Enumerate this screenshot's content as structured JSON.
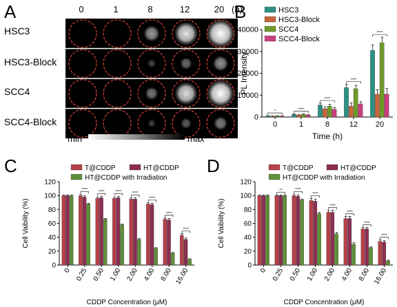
{
  "colors": {
    "HSC3": "#2e8f84",
    "HSC3-Block": "#c8653a",
    "SCC4": "#6f9a2a",
    "SCC4-Block": "#c93f7e",
    "T@CDDP": "#b64048",
    "HT@CDDP": "#8b2f52",
    "HT@CDDP with Irradiation": "#5f8f3a",
    "ring": "#d9443a"
  },
  "panelA": {
    "letter": "A",
    "time_labels": [
      "0",
      "1",
      "8",
      "12",
      "20"
    ],
    "time_unit": "(h)",
    "row_labels": [
      "HSC3",
      "HSC3-Block",
      "SCC4",
      "SCC4-Block"
    ],
    "intensity": [
      [
        0,
        0,
        0.45,
        0.75,
        0.95
      ],
      [
        0,
        0,
        0.12,
        0.28,
        0.42
      ],
      [
        0,
        0,
        0.32,
        0.72,
        0.9
      ],
      [
        0,
        0,
        0.1,
        0.22,
        0.35
      ]
    ],
    "min_label": "min",
    "max_label": "max"
  },
  "chart_data": [
    {
      "panel": "B",
      "type": "bar",
      "categories": [
        "0",
        "1",
        "8",
        "12",
        "20"
      ],
      "xlabel": "Time (h)",
      "ylabel": "PL Intensity",
      "ylim": [
        0,
        40000
      ],
      "yticks": [
        "0",
        "10000",
        "20000",
        "30000",
        "40000"
      ],
      "legend_position": "top-left",
      "series": [
        {
          "name": "HSC3",
          "values": [
            500,
            1200,
            5500,
            13500,
            30500
          ],
          "errors": [
            100,
            200,
            800,
            1500,
            2500
          ]
        },
        {
          "name": "HSC3-Block",
          "values": [
            400,
            900,
            3800,
            5000,
            10500
          ],
          "errors": [
            100,
            150,
            900,
            1500,
            2000
          ]
        },
        {
          "name": "SCC4",
          "values": [
            500,
            1200,
            5000,
            13000,
            34000
          ],
          "errors": [
            100,
            200,
            800,
            1500,
            2500
          ]
        },
        {
          "name": "SCC4-Block",
          "values": [
            400,
            900,
            3600,
            6000,
            10500
          ],
          "errors": [
            100,
            150,
            700,
            1000,
            2500
          ]
        }
      ],
      "significance": [
        "*",
        "****",
        "****",
        "****",
        "****"
      ]
    },
    {
      "panel": "C",
      "type": "bar",
      "categories": [
        "0",
        "0.25",
        "0.50",
        "1.00",
        "2.00",
        "4.00",
        "8.00",
        "16.00"
      ],
      "xlabel": "CDDP Concentration (μM)",
      "ylabel": "Cell Vaibility (%)",
      "ylim": [
        0,
        120
      ],
      "yticks": [
        "0",
        "20",
        "40",
        "60",
        "80",
        "100",
        "120"
      ],
      "legend_position": "top",
      "series": [
        {
          "name": "T@CDDP",
          "values": [
            100,
            100,
            96,
            96,
            95,
            88,
            66,
            43
          ],
          "errors": [
            1,
            2,
            2,
            2,
            2,
            2,
            2,
            2
          ]
        },
        {
          "name": "HT@CDDP",
          "values": [
            100,
            98,
            97,
            97,
            95,
            87,
            65,
            37
          ],
          "errors": [
            1,
            2,
            2,
            2,
            2,
            2,
            2,
            2
          ]
        },
        {
          "name": "HT@CDDP with Irradiation",
          "values": [
            100,
            88,
            66,
            58,
            37,
            24,
            17,
            8
          ],
          "errors": [
            1,
            1,
            1,
            1,
            1,
            1,
            1,
            1
          ]
        }
      ],
      "significance": [
        "****",
        "****",
        "****",
        "****",
        "****",
        "****",
        "****"
      ]
    },
    {
      "panel": "D",
      "type": "bar",
      "categories": [
        "0",
        "0.25",
        "0.50",
        "1.00",
        "2.00",
        "4.00",
        "8.00",
        "16.00"
      ],
      "xlabel": "CDDP Concentration (μM)",
      "ylabel": "Cell Vaibility (%)",
      "ylim": [
        0,
        120
      ],
      "yticks": [
        "0",
        "20",
        "40",
        "60",
        "80",
        "100",
        "120"
      ],
      "legend_position": "top",
      "series": [
        {
          "name": "T@CDDP",
          "values": [
            100,
            100,
            100,
            93,
            76,
            67,
            52,
            34
          ],
          "errors": [
            1,
            1,
            2,
            3,
            3,
            3,
            2,
            2
          ]
        },
        {
          "name": "HT@CDDP",
          "values": [
            100,
            100,
            99,
            92,
            76,
            67,
            52,
            33
          ],
          "errors": [
            1,
            1,
            2,
            3,
            3,
            3,
            2,
            2
          ]
        },
        {
          "name": "HT@CDDP with Irradiation",
          "values": [
            100,
            100,
            94,
            74,
            45,
            30,
            25,
            6
          ],
          "errors": [
            1,
            1,
            1,
            2,
            2,
            2,
            1,
            1
          ]
        }
      ],
      "significance": [
        "**",
        "****",
        "****",
        "****",
        "****",
        "****",
        "****"
      ]
    }
  ]
}
